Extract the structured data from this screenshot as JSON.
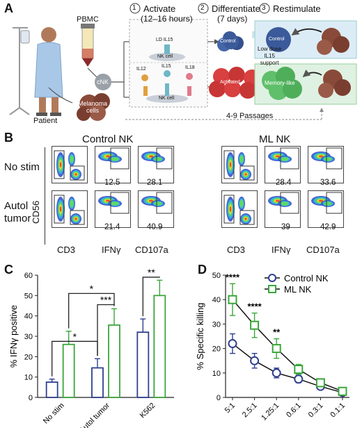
{
  "panelA": {
    "letter": "A",
    "steps": [
      {
        "num": "1",
        "title": "Activate",
        "sub": "(12–16 hours)"
      },
      {
        "num": "2",
        "title": "Differentiate",
        "sub": "(7 days)"
      },
      {
        "num": "3",
        "title": "Restimulate",
        "sub": ""
      }
    ],
    "pbmc": "PBMC",
    "cnk": "cNK",
    "ld_il15": "LD IL15",
    "nk_cell_1": "NK cell",
    "nk_cell_2": "NK cell",
    "il12": "IL12",
    "il15": "IL15",
    "il18": "IL18",
    "control": "Control",
    "activated": "Activated",
    "support": "Low dose\nIL15\nsupport",
    "control_cell": "Control",
    "memory_like": "Memory-like",
    "patient": "Patient",
    "melanoma": "Melanoma\ncells",
    "passages": "4-9 Passages",
    "colors": {
      "blue": "#3b5a9a",
      "red": "#d94040",
      "green": "#5fbf6a",
      "tumor": "#8a4a3a"
    }
  },
  "panelB": {
    "letter": "B",
    "group1_title": "Control NK",
    "group2_title": "ML NK",
    "row1_label": "No stim",
    "row2_label": "Autol\ntumor",
    "y_axis": "CD56",
    "x_labels": [
      "CD3",
      "IFNγ",
      "CD107a",
      "CD3",
      "IFNγ",
      "CD107a"
    ],
    "values": {
      "control_nostim_ifng": "12.5",
      "control_nostim_cd107a": "28.1",
      "control_tumor_ifng": "21.4",
      "control_tumor_cd107a": "40.9",
      "ml_nostim_ifng": "28.4",
      "ml_nostim_cd107a": "33.6",
      "ml_tumor_ifng": "39",
      "ml_tumor_cd107a": "42.9"
    }
  },
  "chart_data": [
    {
      "panel": "C",
      "type": "bar",
      "ylabel": "% IFNγ positive",
      "ylim": [
        0,
        60
      ],
      "yticks": [
        0,
        10,
        20,
        30,
        40,
        50,
        60
      ],
      "categories": [
        "No stim",
        "Autol tumor",
        "K562"
      ],
      "series": [
        {
          "name": "Control NK",
          "color": "#2f3f8f",
          "values": [
            7.5,
            14.5,
            32
          ],
          "errors": [
            1.5,
            4.5,
            6.5
          ]
        },
        {
          "name": "ML NK",
          "color": "#3aa63a",
          "values": [
            26,
            35.5,
            50
          ],
          "errors": [
            6.5,
            8,
            7.5
          ]
        }
      ],
      "significance": [
        {
          "label": "*"
        },
        {
          "label": "*"
        },
        {
          "label": "***"
        },
        {
          "label": "**"
        }
      ]
    },
    {
      "panel": "D",
      "type": "line",
      "ylabel": "% Specific killing",
      "ylim": [
        0,
        50
      ],
      "yticks": [
        0,
        10,
        20,
        30,
        40,
        50
      ],
      "x": [
        "5:1",
        "2.5:1",
        "1.25:1",
        "0.6:1",
        "0.3:1",
        "0.1:1"
      ],
      "series": [
        {
          "name": "Control NK",
          "color": "#2f3f8f",
          "marker": "circle",
          "values": [
            22,
            15,
            10,
            7.5,
            4.5,
            2
          ],
          "errors": [
            4,
            3,
            2,
            1.5,
            1,
            0.8
          ]
        },
        {
          "name": "ML NK",
          "color": "#3aa63a",
          "marker": "square",
          "values": [
            40,
            29.5,
            20,
            11.5,
            6,
            2.5
          ],
          "errors": [
            6.5,
            5,
            4,
            2,
            1.5,
            1
          ]
        }
      ],
      "annotations": [
        {
          "x": "5:1",
          "label": "****"
        },
        {
          "x": "2.5:1",
          "label": "****"
        },
        {
          "x": "1.25:1",
          "label": "**"
        }
      ],
      "legend_position": "top-right"
    }
  ],
  "panelC_letter": "C",
  "panelD_letter": "D"
}
